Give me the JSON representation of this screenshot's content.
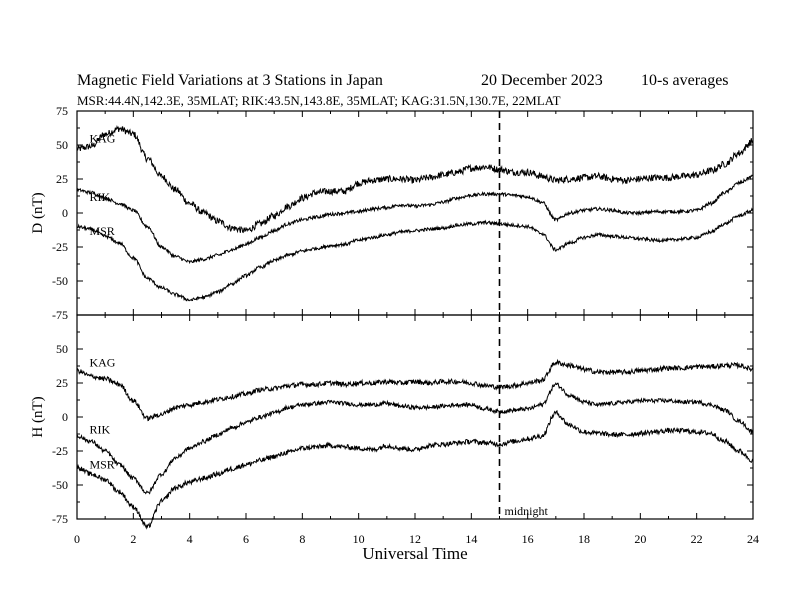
{
  "header": {
    "title": "Magnetic Field Variations at 3 Stations in Japan",
    "date": "20 December 2023",
    "averaging": "10-s averages",
    "stations_line": "MSR:44.4N,142.3E, 35MLAT;  RIK:43.5N,143.8E, 35MLAT;  KAG:31.5N,130.7E, 22MLAT"
  },
  "chart_data": [
    {
      "type": "line",
      "panel": "top",
      "ylabel": "D (nT)",
      "xlim": [
        0,
        24
      ],
      "ylim": [
        -75,
        75
      ],
      "yticks": [
        -75,
        -50,
        -25,
        0,
        25,
        50,
        75
      ],
      "ytick_labels": [
        "-75",
        "-50",
        "-25",
        "0",
        "25",
        "50",
        "75"
      ],
      "grid": false,
      "annotations": [
        {
          "text": "midnight",
          "x": 15
        }
      ],
      "series": [
        {
          "name": "KAG",
          "label_at": [
            0.3,
            52
          ],
          "noise": 2.5,
          "x": [
            0,
            0.5,
            1,
            1.5,
            2,
            2.5,
            3,
            3.5,
            4,
            4.5,
            5,
            5.5,
            6,
            6.5,
            7,
            7.5,
            8,
            8.5,
            9,
            9.5,
            10,
            10.5,
            11,
            11.5,
            12,
            12.5,
            13,
            13.5,
            14,
            14.5,
            15,
            15.5,
            16,
            16.5,
            17,
            17.5,
            18,
            18.5,
            19,
            19.5,
            20,
            20.5,
            21,
            21.5,
            22,
            22.5,
            23,
            23.5,
            24
          ],
          "y": [
            47,
            49,
            58,
            62,
            58,
            40,
            27,
            17,
            7,
            0,
            -6,
            -11,
            -13,
            -8,
            -2,
            5,
            11,
            15,
            16,
            16,
            22,
            24,
            25,
            25,
            24,
            26,
            28,
            30,
            33,
            34,
            32,
            30,
            30,
            27,
            24,
            25,
            26,
            27,
            25,
            24,
            25,
            26,
            26,
            27,
            28,
            31,
            36,
            44,
            53
          ]
        },
        {
          "name": "RIK",
          "label_at": [
            0.3,
            9
          ],
          "noise": 1.2,
          "x": [
            0,
            0.5,
            1,
            1.5,
            2,
            2.5,
            3,
            3.5,
            4,
            4.5,
            5,
            5.5,
            6,
            6.5,
            7,
            7.5,
            8,
            8.5,
            9,
            9.5,
            10,
            10.5,
            11,
            11.5,
            12,
            12.5,
            13,
            13.5,
            14,
            14.5,
            15,
            15.5,
            16,
            16.5,
            17,
            17.5,
            18,
            18.5,
            19,
            19.5,
            20,
            20.5,
            21,
            21.5,
            22,
            22.5,
            23,
            23.5,
            24
          ],
          "y": [
            17,
            15,
            11,
            7,
            2,
            -10,
            -25,
            -32,
            -36,
            -34,
            -31,
            -27,
            -23,
            -18,
            -13,
            -8,
            -5,
            -3,
            -1,
            0,
            1,
            3,
            4,
            6,
            5,
            6,
            8,
            11,
            13,
            14,
            14,
            13,
            12,
            8,
            -5,
            0,
            2,
            3,
            2,
            0,
            0,
            1,
            1,
            1,
            2,
            7,
            15,
            22,
            27
          ]
        },
        {
          "name": "MSR",
          "label_at": [
            0.3,
            -16
          ],
          "noise": 1.2,
          "x": [
            0,
            0.5,
            1,
            1.5,
            2,
            2.5,
            3,
            3.5,
            4,
            4.5,
            5,
            5.5,
            6,
            6.5,
            7,
            7.5,
            8,
            8.5,
            9,
            9.5,
            10,
            10.5,
            11,
            11.5,
            12,
            12.5,
            13,
            13.5,
            14,
            14.5,
            15,
            15.5,
            16,
            16.5,
            17,
            17.5,
            18,
            18.5,
            19,
            19.5,
            20,
            20.5,
            21,
            21.5,
            22,
            22.5,
            23,
            23.5,
            24
          ],
          "y": [
            -10,
            -12,
            -17,
            -22,
            -33,
            -48,
            -55,
            -60,
            -64,
            -62,
            -58,
            -52,
            -46,
            -40,
            -35,
            -31,
            -28,
            -26,
            -24,
            -23,
            -20,
            -18,
            -16,
            -14,
            -13,
            -12,
            -11,
            -9,
            -8,
            -7,
            -8,
            -9,
            -10,
            -15,
            -27,
            -22,
            -18,
            -16,
            -17,
            -18,
            -19,
            -20,
            -20,
            -19,
            -18,
            -14,
            -8,
            -2,
            2
          ]
        }
      ]
    },
    {
      "type": "line",
      "panel": "bottom",
      "ylabel": "H (nT)",
      "xlabel": "Universal Time",
      "xlim": [
        0,
        24
      ],
      "ylim": [
        -75,
        75
      ],
      "xticks": [
        0,
        2,
        4,
        6,
        8,
        10,
        12,
        14,
        16,
        18,
        20,
        22,
        24
      ],
      "xtick_labels": [
        "0",
        "2",
        "4",
        "6",
        "8",
        "10",
        "12",
        "14",
        "16",
        "18",
        "20",
        "22",
        "24"
      ],
      "yticks": [
        -75,
        -50,
        -25,
        0,
        25,
        50
      ],
      "ytick_labels": [
        "-75",
        "-50",
        "-25",
        "0",
        "25",
        "50"
      ],
      "grid": false,
      "series": [
        {
          "name": "KAG",
          "label_at": [
            0.3,
            37
          ],
          "noise": 1.8,
          "x": [
            0,
            0.5,
            1,
            1.5,
            2,
            2.5,
            3,
            3.5,
            4,
            4.5,
            5,
            5.5,
            6,
            6.5,
            7,
            7.5,
            8,
            8.5,
            9,
            9.5,
            10,
            10.5,
            11,
            11.5,
            12,
            12.5,
            13,
            13.5,
            14,
            14.5,
            15,
            15.5,
            16,
            16.5,
            17,
            17.5,
            18,
            18.5,
            19,
            19.5,
            20,
            20.5,
            21,
            21.5,
            22,
            22.5,
            23,
            23.5,
            24
          ],
          "y": [
            34,
            30,
            28,
            24,
            12,
            -1,
            2,
            7,
            9,
            11,
            13,
            15,
            17,
            20,
            21,
            23,
            24,
            24,
            25,
            24,
            25,
            25,
            26,
            25,
            26,
            25,
            26,
            26,
            25,
            23,
            22,
            23,
            25,
            27,
            40,
            38,
            35,
            33,
            33,
            33,
            34,
            35,
            36,
            36,
            37,
            37,
            38,
            38,
            35
          ]
        },
        {
          "name": "RIK",
          "label_at": [
            0.3,
            -12
          ],
          "noise": 1.5,
          "x": [
            0,
            0.5,
            1,
            1.5,
            2,
            2.5,
            3,
            3.5,
            4,
            4.5,
            5,
            5.5,
            6,
            6.5,
            7,
            7.5,
            8,
            8.5,
            9,
            9.5,
            10,
            10.5,
            11,
            11.5,
            12,
            12.5,
            13,
            13.5,
            14,
            14.5,
            15,
            15.5,
            16,
            16.5,
            17,
            17.5,
            18,
            18.5,
            19,
            19.5,
            20,
            20.5,
            21,
            21.5,
            22,
            22.5,
            23,
            23.5,
            24
          ],
          "y": [
            -14,
            -18,
            -25,
            -35,
            -45,
            -56,
            -42,
            -30,
            -23,
            -18,
            -13,
            -8,
            -4,
            0,
            3,
            7,
            9,
            10,
            11,
            10,
            9,
            9,
            10,
            8,
            7,
            7,
            8,
            9,
            9,
            6,
            4,
            5,
            6,
            9,
            24,
            16,
            11,
            9,
            10,
            11,
            12,
            12,
            12,
            11,
            11,
            9,
            5,
            -3,
            -11
          ]
        },
        {
          "name": "MSR",
          "label_at": [
            0.3,
            -38
          ],
          "noise": 1.8,
          "x": [
            0,
            0.5,
            1,
            1.5,
            2,
            2.5,
            3,
            3.5,
            4,
            4.5,
            5,
            5.5,
            6,
            6.5,
            7,
            7.5,
            8,
            8.5,
            9,
            9.5,
            10,
            10.5,
            11,
            11.5,
            12,
            12.5,
            13,
            13.5,
            14,
            14.5,
            15,
            15.5,
            16,
            16.5,
            17,
            17.5,
            18,
            18.5,
            19,
            19.5,
            20,
            20.5,
            21,
            21.5,
            22,
            22.5,
            23,
            23.5,
            24
          ],
          "y": [
            -37,
            -42,
            -46,
            -55,
            -66,
            -81,
            -62,
            -52,
            -48,
            -45,
            -42,
            -38,
            -35,
            -32,
            -29,
            -26,
            -23,
            -22,
            -21,
            -22,
            -23,
            -24,
            -21,
            -23,
            -24,
            -21,
            -20,
            -19,
            -18,
            -19,
            -20,
            -18,
            -16,
            -14,
            3,
            -6,
            -11,
            -12,
            -13,
            -13,
            -12,
            -11,
            -10,
            -10,
            -11,
            -12,
            -18,
            -25,
            -32
          ]
        }
      ]
    }
  ]
}
